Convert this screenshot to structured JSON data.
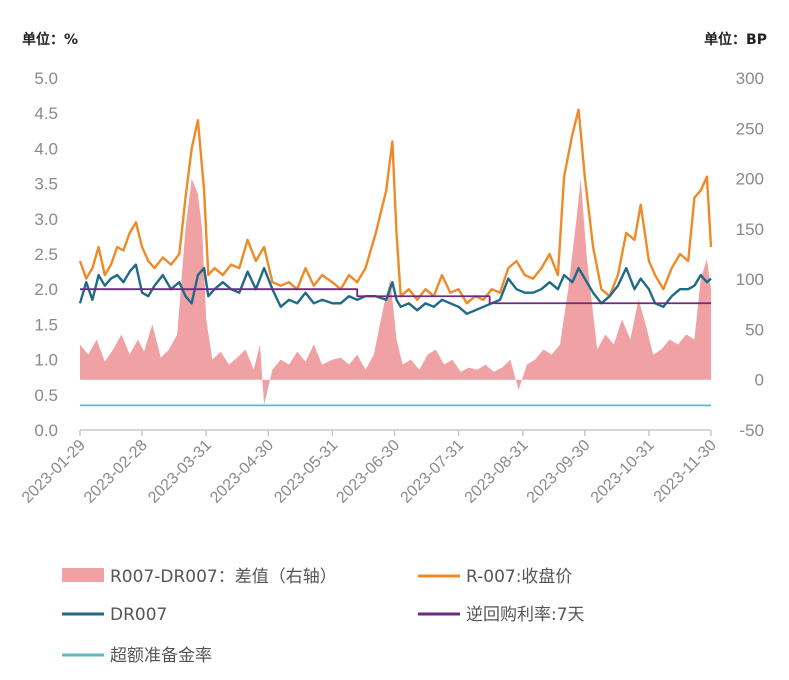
{
  "chart_data": {
    "type": "line",
    "left_unit": "单位：%",
    "right_unit": "单位：BP",
    "y_left": {
      "min": 0,
      "max": 5,
      "ticks": [
        "0.0",
        "0.5",
        "1.0",
        "1.5",
        "2.0",
        "2.5",
        "3.0",
        "3.5",
        "4.0",
        "4.5",
        "5.0"
      ]
    },
    "y_right": {
      "min": -50,
      "max": 300,
      "ticks": [
        "-50",
        "0",
        "50",
        "100",
        "150",
        "200",
        "250",
        "300"
      ]
    },
    "x_range": [
      "2023-01-29",
      "2023-11-30"
    ],
    "x_ticks": [
      "2023-01-29",
      "2023-02-28",
      "2023-03-31",
      "2023-04-30",
      "2023-05-31",
      "2023-06-30",
      "2023-07-31",
      "2023-08-31",
      "2023-09-30",
      "2023-10-31",
      "2023-11-30"
    ],
    "colors": {
      "spread": "#f0a1a4",
      "r007": "#ee8a27",
      "dr007": "#1f6b87",
      "reverse_repo": "#6e2a7e",
      "excess_reserve": "#5cbcc0",
      "axis": "#c8c8c8",
      "tick": "#8a8a8a"
    },
    "series": [
      {
        "name": "R007-DR007：差值（右轴）",
        "axis": "right",
        "type": "area",
        "points": [
          [
            "2023-01-29",
            35
          ],
          [
            "2023-02-02",
            25
          ],
          [
            "2023-02-06",
            40
          ],
          [
            "2023-02-10",
            18
          ],
          [
            "2023-02-14",
            30
          ],
          [
            "2023-02-18",
            45
          ],
          [
            "2023-02-22",
            25
          ],
          [
            "2023-02-26",
            40
          ],
          [
            "2023-03-01",
            28
          ],
          [
            "2023-03-05",
            55
          ],
          [
            "2023-03-09",
            22
          ],
          [
            "2023-03-13",
            30
          ],
          [
            "2023-03-17",
            45
          ],
          [
            "2023-03-21",
            150
          ],
          [
            "2023-03-24",
            200
          ],
          [
            "2023-03-27",
            185
          ],
          [
            "2023-03-29",
            150
          ],
          [
            "2023-03-31",
            60
          ],
          [
            "2023-04-03",
            20
          ],
          [
            "2023-04-07",
            28
          ],
          [
            "2023-04-11",
            15
          ],
          [
            "2023-04-15",
            22
          ],
          [
            "2023-04-19",
            30
          ],
          [
            "2023-04-23",
            10
          ],
          [
            "2023-04-26",
            35
          ],
          [
            "2023-04-28",
            -25
          ],
          [
            "2023-05-02",
            10
          ],
          [
            "2023-05-06",
            20
          ],
          [
            "2023-05-10",
            15
          ],
          [
            "2023-05-14",
            28
          ],
          [
            "2023-05-18",
            18
          ],
          [
            "2023-05-22",
            35
          ],
          [
            "2023-05-26",
            15
          ],
          [
            "2023-05-31",
            20
          ],
          [
            "2023-06-04",
            22
          ],
          [
            "2023-06-08",
            15
          ],
          [
            "2023-06-12",
            25
          ],
          [
            "2023-06-16",
            10
          ],
          [
            "2023-06-20",
            25
          ],
          [
            "2023-06-25",
            75
          ],
          [
            "2023-06-28",
            100
          ],
          [
            "2023-07-01",
            40
          ],
          [
            "2023-07-04",
            15
          ],
          [
            "2023-07-08",
            20
          ],
          [
            "2023-07-12",
            10
          ],
          [
            "2023-07-16",
            25
          ],
          [
            "2023-07-20",
            30
          ],
          [
            "2023-07-24",
            15
          ],
          [
            "2023-07-28",
            20
          ],
          [
            "2023-08-01",
            8
          ],
          [
            "2023-08-05",
            12
          ],
          [
            "2023-08-09",
            10
          ],
          [
            "2023-08-13",
            15
          ],
          [
            "2023-08-17",
            8
          ],
          [
            "2023-08-21",
            12
          ],
          [
            "2023-08-25",
            20
          ],
          [
            "2023-08-29",
            -10
          ],
          [
            "2023-09-02",
            15
          ],
          [
            "2023-09-06",
            20
          ],
          [
            "2023-09-10",
            30
          ],
          [
            "2023-09-14",
            25
          ],
          [
            "2023-09-18",
            35
          ],
          [
            "2023-09-22",
            90
          ],
          [
            "2023-09-26",
            160
          ],
          [
            "2023-09-28",
            200
          ],
          [
            "2023-10-01",
            120
          ],
          [
            "2023-10-06",
            30
          ],
          [
            "2023-10-10",
            45
          ],
          [
            "2023-10-14",
            35
          ],
          [
            "2023-10-18",
            60
          ],
          [
            "2023-10-22",
            40
          ],
          [
            "2023-10-26",
            80
          ],
          [
            "2023-10-30",
            50
          ],
          [
            "2023-11-02",
            25
          ],
          [
            "2023-11-06",
            30
          ],
          [
            "2023-11-10",
            40
          ],
          [
            "2023-11-14",
            35
          ],
          [
            "2023-11-18",
            45
          ],
          [
            "2023-11-22",
            40
          ],
          [
            "2023-11-25",
            100
          ],
          [
            "2023-11-28",
            120
          ],
          [
            "2023-11-30",
            90
          ]
        ]
      },
      {
        "name": "R-007:收盘价",
        "axis": "left",
        "type": "line",
        "points": [
          [
            "2023-01-29",
            2.4
          ],
          [
            "2023-02-01",
            2.15
          ],
          [
            "2023-02-04",
            2.3
          ],
          [
            "2023-02-07",
            2.6
          ],
          [
            "2023-02-10",
            2.2
          ],
          [
            "2023-02-13",
            2.35
          ],
          [
            "2023-02-16",
            2.6
          ],
          [
            "2023-02-19",
            2.55
          ],
          [
            "2023-02-22",
            2.8
          ],
          [
            "2023-02-25",
            2.95
          ],
          [
            "2023-02-28",
            2.6
          ],
          [
            "2023-03-03",
            2.4
          ],
          [
            "2023-03-06",
            2.3
          ],
          [
            "2023-03-10",
            2.45
          ],
          [
            "2023-03-14",
            2.35
          ],
          [
            "2023-03-18",
            2.5
          ],
          [
            "2023-03-21",
            3.3
          ],
          [
            "2023-03-24",
            4.0
          ],
          [
            "2023-03-27",
            4.4
          ],
          [
            "2023-03-30",
            3.4
          ],
          [
            "2023-04-01",
            2.2
          ],
          [
            "2023-04-04",
            2.3
          ],
          [
            "2023-04-08",
            2.2
          ],
          [
            "2023-04-12",
            2.35
          ],
          [
            "2023-04-16",
            2.3
          ],
          [
            "2023-04-20",
            2.7
          ],
          [
            "2023-04-24",
            2.4
          ],
          [
            "2023-04-28",
            2.6
          ],
          [
            "2023-05-02",
            2.1
          ],
          [
            "2023-05-06",
            2.05
          ],
          [
            "2023-05-10",
            2.1
          ],
          [
            "2023-05-14",
            2.0
          ],
          [
            "2023-05-18",
            2.3
          ],
          [
            "2023-05-22",
            2.05
          ],
          [
            "2023-05-26",
            2.2
          ],
          [
            "2023-05-31",
            2.1
          ],
          [
            "2023-06-04",
            2.0
          ],
          [
            "2023-06-08",
            2.2
          ],
          [
            "2023-06-12",
            2.1
          ],
          [
            "2023-06-16",
            2.3
          ],
          [
            "2023-06-21",
            2.8
          ],
          [
            "2023-06-26",
            3.4
          ],
          [
            "2023-06-29",
            4.1
          ],
          [
            "2023-07-01",
            2.8
          ],
          [
            "2023-07-03",
            1.9
          ],
          [
            "2023-07-07",
            2.0
          ],
          [
            "2023-07-11",
            1.85
          ],
          [
            "2023-07-15",
            2.0
          ],
          [
            "2023-07-19",
            1.9
          ],
          [
            "2023-07-23",
            2.2
          ],
          [
            "2023-07-27",
            1.95
          ],
          [
            "2023-07-31",
            2.0
          ],
          [
            "2023-08-04",
            1.8
          ],
          [
            "2023-08-08",
            1.9
          ],
          [
            "2023-08-12",
            1.85
          ],
          [
            "2023-08-16",
            2.0
          ],
          [
            "2023-08-20",
            1.95
          ],
          [
            "2023-08-24",
            2.3
          ],
          [
            "2023-08-28",
            2.4
          ],
          [
            "2023-09-01",
            2.2
          ],
          [
            "2023-09-05",
            2.15
          ],
          [
            "2023-09-09",
            2.3
          ],
          [
            "2023-09-13",
            2.5
          ],
          [
            "2023-09-17",
            2.2
          ],
          [
            "2023-09-20",
            3.6
          ],
          [
            "2023-09-24",
            4.2
          ],
          [
            "2023-09-27",
            4.55
          ],
          [
            "2023-09-30",
            3.6
          ],
          [
            "2023-10-04",
            2.6
          ],
          [
            "2023-10-08",
            2.0
          ],
          [
            "2023-10-12",
            1.9
          ],
          [
            "2023-10-16",
            2.2
          ],
          [
            "2023-10-20",
            2.8
          ],
          [
            "2023-10-24",
            2.7
          ],
          [
            "2023-10-27",
            3.2
          ],
          [
            "2023-10-31",
            2.4
          ],
          [
            "2023-11-03",
            2.2
          ],
          [
            "2023-11-07",
            2.0
          ],
          [
            "2023-11-11",
            2.3
          ],
          [
            "2023-11-15",
            2.5
          ],
          [
            "2023-11-19",
            2.4
          ],
          [
            "2023-11-22",
            3.3
          ],
          [
            "2023-11-25",
            3.4
          ],
          [
            "2023-11-28",
            3.6
          ],
          [
            "2023-11-30",
            2.6
          ]
        ]
      },
      {
        "name": "DR007",
        "axis": "left",
        "type": "line",
        "points": [
          [
            "2023-01-29",
            1.8
          ],
          [
            "2023-02-01",
            2.1
          ],
          [
            "2023-02-04",
            1.85
          ],
          [
            "2023-02-07",
            2.2
          ],
          [
            "2023-02-10",
            2.05
          ],
          [
            "2023-02-13",
            2.15
          ],
          [
            "2023-02-16",
            2.2
          ],
          [
            "2023-02-19",
            2.1
          ],
          [
            "2023-02-22",
            2.25
          ],
          [
            "2023-02-25",
            2.35
          ],
          [
            "2023-02-28",
            1.95
          ],
          [
            "2023-03-03",
            1.9
          ],
          [
            "2023-03-06",
            2.05
          ],
          [
            "2023-03-10",
            2.2
          ],
          [
            "2023-03-14",
            2.0
          ],
          [
            "2023-03-18",
            2.1
          ],
          [
            "2023-03-21",
            1.9
          ],
          [
            "2023-03-24",
            1.8
          ],
          [
            "2023-03-27",
            2.2
          ],
          [
            "2023-03-30",
            2.3
          ],
          [
            "2023-04-01",
            1.9
          ],
          [
            "2023-04-04",
            2.0
          ],
          [
            "2023-04-08",
            2.1
          ],
          [
            "2023-04-12",
            2.0
          ],
          [
            "2023-04-16",
            1.95
          ],
          [
            "2023-04-20",
            2.25
          ],
          [
            "2023-04-24",
            2.0
          ],
          [
            "2023-04-28",
            2.3
          ],
          [
            "2023-05-02",
            2.0
          ],
          [
            "2023-05-06",
            1.75
          ],
          [
            "2023-05-10",
            1.85
          ],
          [
            "2023-05-14",
            1.8
          ],
          [
            "2023-05-18",
            1.95
          ],
          [
            "2023-05-22",
            1.8
          ],
          [
            "2023-05-26",
            1.85
          ],
          [
            "2023-05-31",
            1.8
          ],
          [
            "2023-06-04",
            1.8
          ],
          [
            "2023-06-08",
            1.9
          ],
          [
            "2023-06-12",
            1.85
          ],
          [
            "2023-06-16",
            1.9
          ],
          [
            "2023-06-21",
            1.9
          ],
          [
            "2023-06-26",
            1.85
          ],
          [
            "2023-06-29",
            2.1
          ],
          [
            "2023-07-01",
            1.85
          ],
          [
            "2023-07-03",
            1.75
          ],
          [
            "2023-07-07",
            1.8
          ],
          [
            "2023-07-11",
            1.7
          ],
          [
            "2023-07-15",
            1.8
          ],
          [
            "2023-07-19",
            1.75
          ],
          [
            "2023-07-23",
            1.85
          ],
          [
            "2023-07-27",
            1.8
          ],
          [
            "2023-07-31",
            1.75
          ],
          [
            "2023-08-04",
            1.65
          ],
          [
            "2023-08-08",
            1.7
          ],
          [
            "2023-08-12",
            1.75
          ],
          [
            "2023-08-16",
            1.8
          ],
          [
            "2023-08-20",
            1.85
          ],
          [
            "2023-08-24",
            2.15
          ],
          [
            "2023-08-28",
            2.0
          ],
          [
            "2023-09-01",
            1.95
          ],
          [
            "2023-09-05",
            1.95
          ],
          [
            "2023-09-09",
            2.0
          ],
          [
            "2023-09-13",
            2.1
          ],
          [
            "2023-09-17",
            2.0
          ],
          [
            "2023-09-20",
            2.2
          ],
          [
            "2023-09-24",
            2.1
          ],
          [
            "2023-09-27",
            2.3
          ],
          [
            "2023-09-30",
            2.15
          ],
          [
            "2023-10-04",
            1.95
          ],
          [
            "2023-10-08",
            1.8
          ],
          [
            "2023-10-12",
            1.9
          ],
          [
            "2023-10-16",
            2.05
          ],
          [
            "2023-10-20",
            2.3
          ],
          [
            "2023-10-24",
            2.0
          ],
          [
            "2023-10-27",
            2.15
          ],
          [
            "2023-10-31",
            2.0
          ],
          [
            "2023-11-03",
            1.8
          ],
          [
            "2023-11-07",
            1.75
          ],
          [
            "2023-11-11",
            1.9
          ],
          [
            "2023-11-15",
            2.0
          ],
          [
            "2023-11-19",
            2.0
          ],
          [
            "2023-11-22",
            2.05
          ],
          [
            "2023-11-25",
            2.2
          ],
          [
            "2023-11-28",
            2.1
          ],
          [
            "2023-11-30",
            2.15
          ]
        ]
      },
      {
        "name": "逆回购利率:7天",
        "axis": "left",
        "type": "step",
        "points": [
          [
            "2023-01-29",
            2.0
          ],
          [
            "2023-06-12",
            1.9
          ],
          [
            "2023-08-15",
            1.8
          ],
          [
            "2023-11-30",
            1.8
          ]
        ]
      },
      {
        "name": "超额准备金率",
        "axis": "left",
        "type": "line",
        "points": [
          [
            "2023-01-29",
            0.35
          ],
          [
            "2023-11-30",
            0.35
          ]
        ]
      }
    ],
    "legend": {
      "placement": "bottom",
      "items": [
        {
          "label": "R007-DR007：差值（右轴）",
          "kind": "area",
          "color_key": "spread"
        },
        {
          "label": "R-007:收盘价",
          "kind": "line",
          "color_key": "r007"
        },
        {
          "label": "DR007",
          "kind": "line",
          "color_key": "dr007"
        },
        {
          "label": "逆回购利率:7天",
          "kind": "line",
          "color_key": "reverse_repo"
        },
        {
          "label": "超额准备金率",
          "kind": "line",
          "color_key": "excess_reserve"
        }
      ]
    }
  }
}
